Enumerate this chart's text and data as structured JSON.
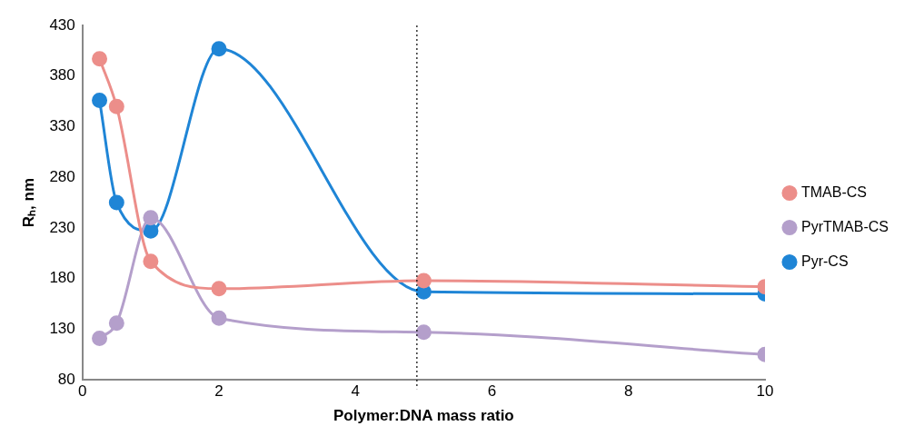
{
  "chart_data": {
    "type": "line",
    "xlabel": "Polymer:DNA mass ratio",
    "ylabel": "Rₕ, nm",
    "x": [
      0.25,
      0.5,
      1,
      2,
      5,
      10
    ],
    "series": [
      {
        "name": "TMAB-CS",
        "color": "#ec8e8a",
        "values": [
          397,
          350,
          197,
          170,
          178,
          172
        ]
      },
      {
        "name": "PyrTMAB-CS",
        "color": "#b49fcb",
        "values": [
          121,
          136,
          240,
          141,
          127,
          105
        ]
      },
      {
        "name": "Pyr-CS",
        "color": "#1f85d6",
        "values": [
          356,
          255,
          227,
          407,
          167,
          165
        ]
      }
    ],
    "xlim": [
      0,
      10
    ],
    "xticks": [
      0,
      2,
      4,
      6,
      8,
      10
    ],
    "ylim": [
      80,
      430
    ],
    "yticks": [
      80,
      130,
      180,
      230,
      280,
      330,
      380,
      430
    ],
    "ref_lines": [
      {
        "axis": "x",
        "value": 4.9,
        "color": "#000000",
        "line_style": "dotted"
      }
    ],
    "grid": false,
    "legend": "right",
    "marker": "circle",
    "line_style": "solid"
  }
}
